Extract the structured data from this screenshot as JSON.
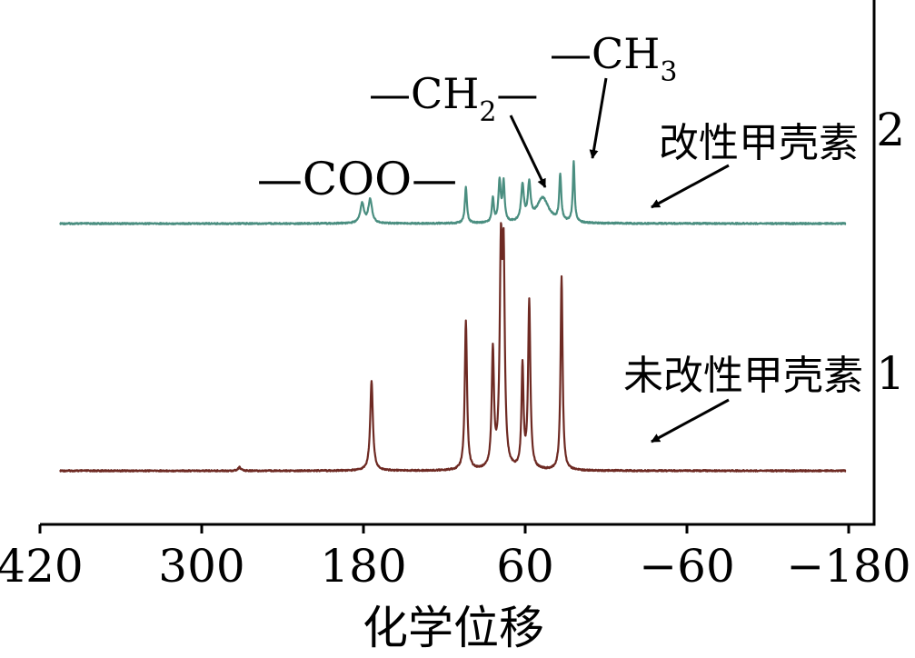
{
  "chart_data": {
    "type": "line",
    "xlabel": "化学位移",
    "xlim": [
      420,
      -180
    ],
    "xticks": [
      420,
      300,
      180,
      60,
      -60,
      -180
    ],
    "xtick_labels": [
      "420",
      "300",
      "180",
      "60",
      "−60",
      "−180"
    ],
    "grid": false,
    "y_axis": "unlabeled, offset stacked spectra",
    "colors": {
      "modified": "#4a8e80",
      "unmodified": "#6e2a23",
      "axis": "#000000"
    },
    "series": [
      {
        "id": "modified",
        "name": "改性甲壳素",
        "stack_number": "2",
        "baseline": 0,
        "peaks": [
          {
            "x": 181,
            "h": 0.18,
            "w": 1.6
          },
          {
            "x": 175,
            "h": 0.22,
            "w": 1.6
          },
          {
            "x": 104,
            "h": 0.33,
            "w": 0.9
          },
          {
            "x": 84,
            "h": 0.22,
            "w": 0.9
          },
          {
            "x": 79,
            "h": 0.38,
            "w": 1.0
          },
          {
            "x": 76,
            "h": 0.36,
            "w": 0.9
          },
          {
            "x": 62,
            "h": 0.33,
            "w": 1.2
          },
          {
            "x": 57,
            "h": 0.33,
            "w": 1.2
          },
          {
            "x": 47,
            "h": 0.23,
            "w": 5.5
          },
          {
            "x": 34,
            "h": 0.42,
            "w": 0.9
          },
          {
            "x": 24,
            "h": 0.55,
            "w": 0.8
          }
        ]
      },
      {
        "id": "unmodified",
        "name": "未改性甲壳素",
        "stack_number": "1",
        "baseline": 0,
        "peaks": [
          {
            "x": 272,
            "h": 0.03,
            "w": 1.2
          },
          {
            "x": 174,
            "h": 0.77,
            "w": 1.2
          },
          {
            "x": 104,
            "h": 1.28,
            "w": 1.0
          },
          {
            "x": 84,
            "h": 1.0,
            "w": 1.0
          },
          {
            "x": 78,
            "h": 1.76,
            "w": 1.1
          },
          {
            "x": 76,
            "h": 1.65,
            "w": 1.0
          },
          {
            "x": 62,
            "h": 0.88,
            "w": 0.9
          },
          {
            "x": 57,
            "h": 1.44,
            "w": 1.0
          },
          {
            "x": 33,
            "h": 1.67,
            "w": 0.9
          }
        ]
      }
    ],
    "annotations": [
      {
        "id": "coo",
        "text": "—COO—",
        "target_x": 178
      },
      {
        "id": "ch2",
        "text": "—CH",
        "sub": "2",
        "tail": "—",
        "target_x": 47
      },
      {
        "id": "ch3",
        "text": "—CH",
        "sub": "3",
        "target_x": 24
      }
    ]
  }
}
